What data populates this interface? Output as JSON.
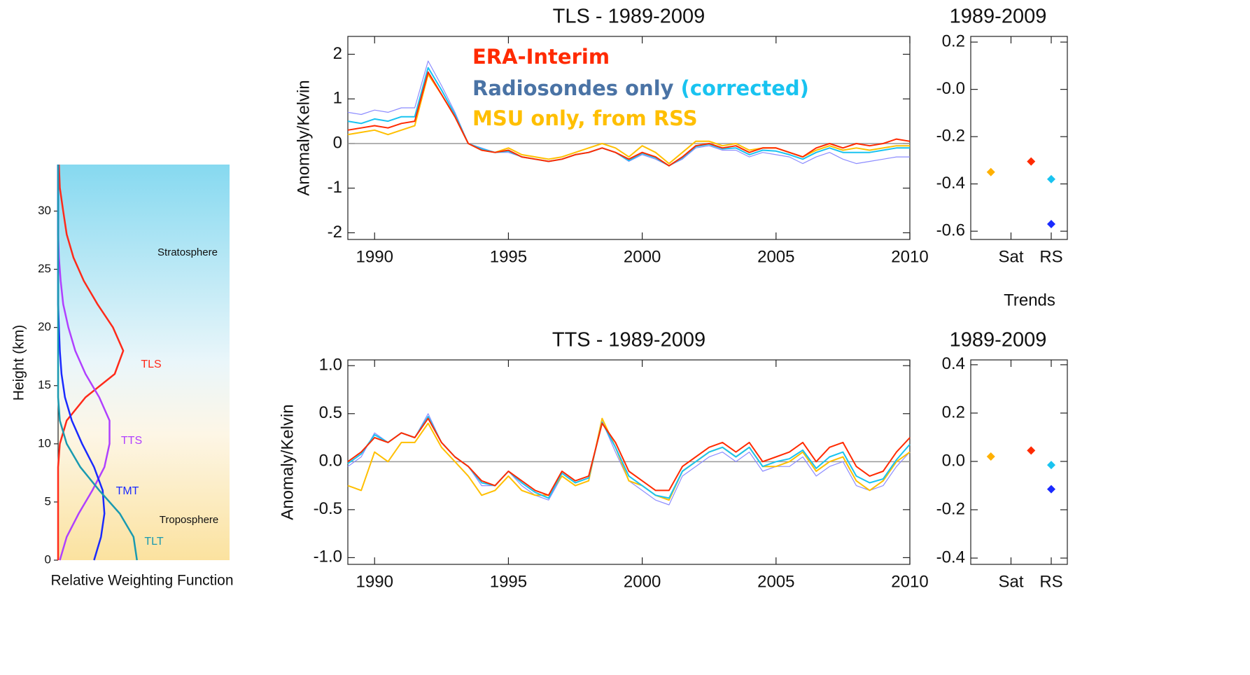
{
  "chart_data": [
    {
      "type": "line",
      "orientation": "horizontal",
      "ylabel": "Height (km)",
      "xlabel": "Relative Weighting Function",
      "annotations": [
        "Stratosphere",
        "Troposphere"
      ],
      "y": [
        0,
        2,
        4,
        6,
        8,
        10,
        12,
        14,
        16,
        18,
        20,
        22,
        24,
        26,
        28,
        30,
        32,
        34
      ],
      "xlim": [
        0,
        1
      ],
      "ylim": [
        0,
        34
      ],
      "yticks": [
        0,
        5,
        10,
        15,
        20,
        25,
        30
      ],
      "series": [
        {
          "name": "TLS",
          "color": "#ff2a1a",
          "values": [
            0,
            0,
            0,
            0,
            0,
            0.01,
            0.05,
            0.16,
            0.33,
            0.38,
            0.32,
            0.23,
            0.15,
            0.09,
            0.05,
            0.03,
            0.01,
            0.005
          ]
        },
        {
          "name": "TTS",
          "color": "#b040ff",
          "values": [
            0.01,
            0.05,
            0.12,
            0.2,
            0.27,
            0.3,
            0.3,
            0.24,
            0.16,
            0.1,
            0.06,
            0.03,
            0.015,
            0.005,
            0,
            0,
            0,
            0
          ]
        },
        {
          "name": "TMT",
          "color": "#1a2aff",
          "values": [
            0.21,
            0.25,
            0.27,
            0.26,
            0.21,
            0.14,
            0.08,
            0.04,
            0.02,
            0.01,
            0.005,
            0,
            0,
            0,
            0,
            0,
            0,
            0
          ]
        },
        {
          "name": "TLT",
          "color": "#1a9ab0",
          "values": [
            0.46,
            0.44,
            0.36,
            0.24,
            0.13,
            0.05,
            0.01,
            0,
            0,
            0,
            0,
            0,
            0,
            0,
            0,
            0,
            0,
            0
          ]
        }
      ]
    },
    {
      "type": "line",
      "title": "TLS - 1989-2009",
      "ylabel": "Anomaly/Kelvin",
      "x": [
        1989,
        1989.5,
        1990,
        1990.5,
        1991,
        1991.5,
        1992,
        1992.5,
        1993,
        1993.5,
        1994,
        1994.5,
        1995,
        1995.5,
        1996,
        1996.5,
        1997,
        1997.5,
        1998,
        1998.5,
        1999,
        1999.5,
        2000,
        2000.5,
        2001,
        2001.5,
        2002,
        2002.5,
        2003,
        2003.5,
        2004,
        2004.5,
        2005,
        2005.5,
        2006,
        2006.5,
        2007,
        2007.5,
        2008,
        2008.5,
        2009,
        2009.5,
        2010
      ],
      "xlim": [
        1989,
        2010
      ],
      "xticks": [
        1990,
        1995,
        2000,
        2005,
        2010
      ],
      "ylim": [
        -2.15,
        2.4
      ],
      "yticks": [
        -2,
        -1,
        0,
        1,
        2
      ],
      "hline": 0,
      "series": [
        {
          "name": "ERA-Interim",
          "color": "#ff2a00",
          "values": [
            0.3,
            0.35,
            0.4,
            0.35,
            0.45,
            0.5,
            1.6,
            1.1,
            0.6,
            0.0,
            -0.15,
            -0.2,
            -0.15,
            -0.3,
            -0.35,
            -0.4,
            -0.35,
            -0.25,
            -0.2,
            -0.1,
            -0.2,
            -0.35,
            -0.2,
            -0.3,
            -0.5,
            -0.3,
            -0.05,
            0.0,
            -0.1,
            -0.05,
            -0.2,
            -0.1,
            -0.1,
            -0.2,
            -0.3,
            -0.1,
            0.0,
            -0.1,
            0.0,
            -0.05,
            0.0,
            0.1,
            0.05
          ]
        },
        {
          "name": "Radiosondes only",
          "color": "#8c8cff",
          "label_color": "#4a73a5",
          "values": [
            0.7,
            0.65,
            0.75,
            0.7,
            0.8,
            0.8,
            1.85,
            1.3,
            0.7,
            0.0,
            -0.1,
            -0.2,
            -0.2,
            -0.3,
            -0.35,
            -0.4,
            -0.35,
            -0.25,
            -0.2,
            -0.1,
            -0.2,
            -0.4,
            -0.25,
            -0.35,
            -0.5,
            -0.35,
            -0.1,
            -0.05,
            -0.15,
            -0.15,
            -0.3,
            -0.2,
            -0.25,
            -0.3,
            -0.45,
            -0.3,
            -0.2,
            -0.35,
            -0.45,
            -0.4,
            -0.35,
            -0.3,
            -0.3
          ]
        },
        {
          "name": "(corrected)",
          "color": "#19c3f0",
          "values": [
            0.5,
            0.45,
            0.55,
            0.5,
            0.6,
            0.6,
            1.7,
            1.2,
            0.65,
            0.0,
            -0.12,
            -0.2,
            -0.17,
            -0.3,
            -0.35,
            -0.4,
            -0.35,
            -0.25,
            -0.2,
            -0.1,
            -0.2,
            -0.38,
            -0.22,
            -0.32,
            -0.5,
            -0.32,
            -0.07,
            -0.02,
            -0.12,
            -0.1,
            -0.25,
            -0.15,
            -0.17,
            -0.25,
            -0.35,
            -0.2,
            -0.1,
            -0.2,
            -0.2,
            -0.2,
            -0.15,
            -0.1,
            -0.1
          ]
        },
        {
          "name": "MSU only, from RSS",
          "color": "#ffbf00",
          "values": [
            0.2,
            0.25,
            0.3,
            0.2,
            0.3,
            0.4,
            1.55,
            1.1,
            0.6,
            0.0,
            -0.15,
            -0.2,
            -0.1,
            -0.25,
            -0.3,
            -0.35,
            -0.3,
            -0.2,
            -0.1,
            0.0,
            -0.1,
            -0.3,
            -0.05,
            -0.2,
            -0.45,
            -0.2,
            0.05,
            0.05,
            -0.05,
            0.0,
            -0.15,
            -0.1,
            -0.1,
            -0.2,
            -0.3,
            -0.15,
            -0.05,
            -0.15,
            -0.1,
            -0.15,
            -0.1,
            -0.05,
            -0.05
          ]
        }
      ]
    },
    {
      "type": "scatter",
      "title": "1989-2009",
      "xlabel": "Trends",
      "xlim": [
        0,
        2.4
      ],
      "xticks": [
        {
          "value": 1,
          "label": "Sat"
        },
        {
          "value": 2,
          "label": "RS"
        }
      ],
      "ylim": [
        -0.635,
        0.224
      ],
      "yticks": [
        0.2,
        {
          "value": 0,
          "label": "-0.0"
        },
        -0.2,
        -0.4,
        -0.6
      ],
      "points": [
        {
          "x": 0.5,
          "y": -0.35,
          "color": "#ffb000"
        },
        {
          "x": 1.5,
          "y": -0.305,
          "color": "#ff2a00"
        },
        {
          "x": 2,
          "y": -0.38,
          "color": "#19c3f0"
        },
        {
          "x": 2,
          "y": -0.57,
          "color": "#1a2aff"
        }
      ]
    },
    {
      "type": "line",
      "title": "TTS - 1989-2009",
      "ylabel": "Anomaly/Kelvin",
      "x": [
        1989,
        1989.5,
        1990,
        1990.5,
        1991,
        1991.5,
        1992,
        1992.5,
        1993,
        1993.5,
        1994,
        1994.5,
        1995,
        1995.5,
        1996,
        1996.5,
        1997,
        1997.5,
        1998,
        1998.5,
        1999,
        1999.5,
        2000,
        2000.5,
        2001,
        2001.5,
        2002,
        2002.5,
        2003,
        2003.5,
        2004,
        2004.5,
        2005,
        2005.5,
        2006,
        2006.5,
        2007,
        2007.5,
        2008,
        2008.5,
        2009,
        2009.5,
        2010
      ],
      "xlim": [
        1989,
        2010
      ],
      "xticks": [
        1990,
        1995,
        2000,
        2005,
        2010
      ],
      "ylim": [
        -1.07,
        1.06
      ],
      "yticks": [
        {
          "value": -1,
          "label": "-1.0"
        },
        -0.5,
        {
          "value": 0,
          "label": "0.0"
        },
        0.5,
        {
          "value": 1,
          "label": "1.0"
        }
      ],
      "hline": 0,
      "series": [
        {
          "color": "#ff2a00",
          "values": [
            0.0,
            0.1,
            0.25,
            0.2,
            0.3,
            0.25,
            0.45,
            0.2,
            0.05,
            -0.05,
            -0.2,
            -0.25,
            -0.1,
            -0.2,
            -0.3,
            -0.35,
            -0.1,
            -0.2,
            -0.15,
            0.4,
            0.2,
            -0.1,
            -0.2,
            -0.3,
            -0.3,
            -0.05,
            0.05,
            0.15,
            0.2,
            0.1,
            0.2,
            0.0,
            0.05,
            0.1,
            0.2,
            0.0,
            0.15,
            0.2,
            -0.05,
            -0.15,
            -0.1,
            0.1,
            0.25
          ]
        },
        {
          "color": "#8c8cff",
          "values": [
            -0.05,
            0.05,
            0.3,
            0.2,
            0.3,
            0.25,
            0.5,
            0.2,
            0.05,
            -0.05,
            -0.25,
            -0.25,
            -0.1,
            -0.25,
            -0.35,
            -0.4,
            -0.15,
            -0.25,
            -0.2,
            0.42,
            0.1,
            -0.2,
            -0.3,
            -0.4,
            -0.45,
            -0.15,
            -0.05,
            0.05,
            0.1,
            0.0,
            0.1,
            -0.1,
            -0.05,
            -0.05,
            0.05,
            -0.15,
            -0.05,
            0.0,
            -0.25,
            -0.3,
            -0.25,
            -0.05,
            0.1
          ]
        },
        {
          "color": "#19c3f0",
          "values": [
            -0.02,
            0.08,
            0.28,
            0.2,
            0.3,
            0.25,
            0.47,
            0.2,
            0.05,
            -0.05,
            -0.22,
            -0.25,
            -0.1,
            -0.22,
            -0.32,
            -0.38,
            -0.12,
            -0.22,
            -0.17,
            0.41,
            0.15,
            -0.15,
            -0.25,
            -0.35,
            -0.38,
            -0.1,
            0.0,
            0.1,
            0.15,
            0.05,
            0.15,
            -0.05,
            0.0,
            0.03,
            0.12,
            -0.07,
            0.05,
            0.1,
            -0.15,
            -0.22,
            -0.18,
            0.02,
            0.18
          ]
        },
        {
          "color": "#ffbf00",
          "values": [
            -0.25,
            -0.3,
            0.1,
            0.0,
            0.2,
            0.2,
            0.4,
            0.15,
            0.0,
            -0.15,
            -0.35,
            -0.3,
            -0.15,
            -0.3,
            -0.35,
            -0.35,
            -0.15,
            -0.25,
            -0.2,
            0.45,
            0.15,
            -0.2,
            -0.25,
            -0.35,
            -0.4,
            -0.1,
            0.0,
            0.1,
            0.15,
            0.05,
            0.15,
            -0.05,
            -0.05,
            0.0,
            0.1,
            -0.1,
            0.0,
            0.05,
            -0.2,
            -0.3,
            -0.2,
            0.0,
            0.1
          ]
        }
      ]
    },
    {
      "type": "scatter",
      "title": "1989-2009",
      "xlim": [
        0,
        2.4
      ],
      "xticks": [
        {
          "value": 1,
          "label": "Sat"
        },
        {
          "value": 2,
          "label": "RS"
        }
      ],
      "ylim": [
        -0.426,
        0.42
      ],
      "yticks": [
        0.4,
        0.2,
        {
          "value": 0,
          "label": "0.0"
        },
        -0.2,
        -0.4
      ],
      "points": [
        {
          "x": 0.5,
          "y": 0.02,
          "color": "#ffb000"
        },
        {
          "x": 1.5,
          "y": 0.045,
          "color": "#ff2a00"
        },
        {
          "x": 2,
          "y": -0.015,
          "color": "#19c3f0"
        },
        {
          "x": 2,
          "y": -0.115,
          "color": "#1a2aff"
        }
      ]
    }
  ]
}
